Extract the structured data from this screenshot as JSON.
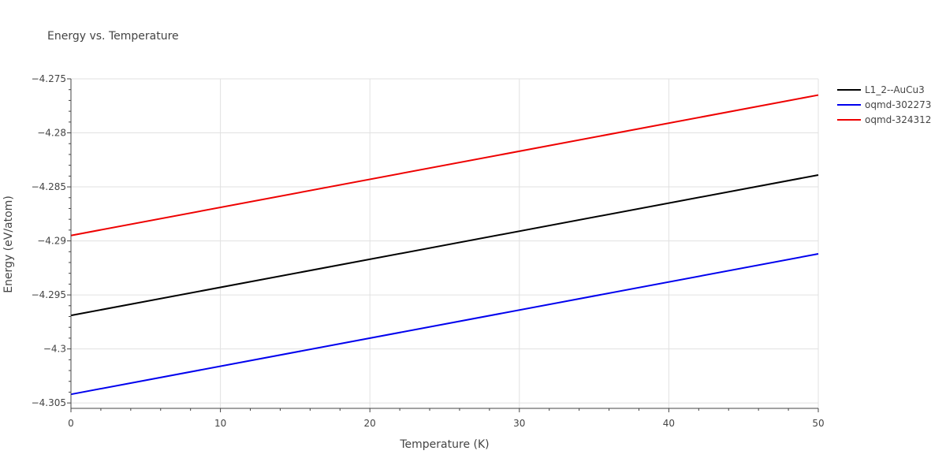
{
  "chart_data": {
    "type": "line",
    "title": "Energy vs. Temperature",
    "xlabel": "Temperature (K)",
    "ylabel": "Energy (eV/atom)",
    "xlim": [
      0,
      50
    ],
    "ylim": [
      -4.3055,
      -4.275
    ],
    "x_ticks": [
      0,
      10,
      20,
      30,
      40,
      50
    ],
    "x_tick_labels": [
      "0",
      "10",
      "20",
      "30",
      "40",
      "50"
    ],
    "y_ticks": [
      -4.305,
      -4.3,
      -4.295,
      -4.29,
      -4.285,
      -4.28,
      -4.275
    ],
    "y_tick_labels": [
      "−4.305",
      "−4.3",
      "−4.295",
      "−4.29",
      "−4.285",
      "−4.28",
      "−4.275"
    ],
    "grid": true,
    "legend_position": "top-right",
    "x": [
      0,
      50
    ],
    "series": [
      {
        "name": "L1_2--AuCu3",
        "color": "#000000",
        "values": [
          -4.2969,
          -4.2839
        ]
      },
      {
        "name": "oqmd-302273",
        "color": "#0000ee",
        "values": [
          -4.3042,
          -4.2912
        ]
      },
      {
        "name": "oqmd-324312",
        "color": "#ee0000",
        "values": [
          -4.2895,
          -4.2765
        ]
      }
    ]
  }
}
